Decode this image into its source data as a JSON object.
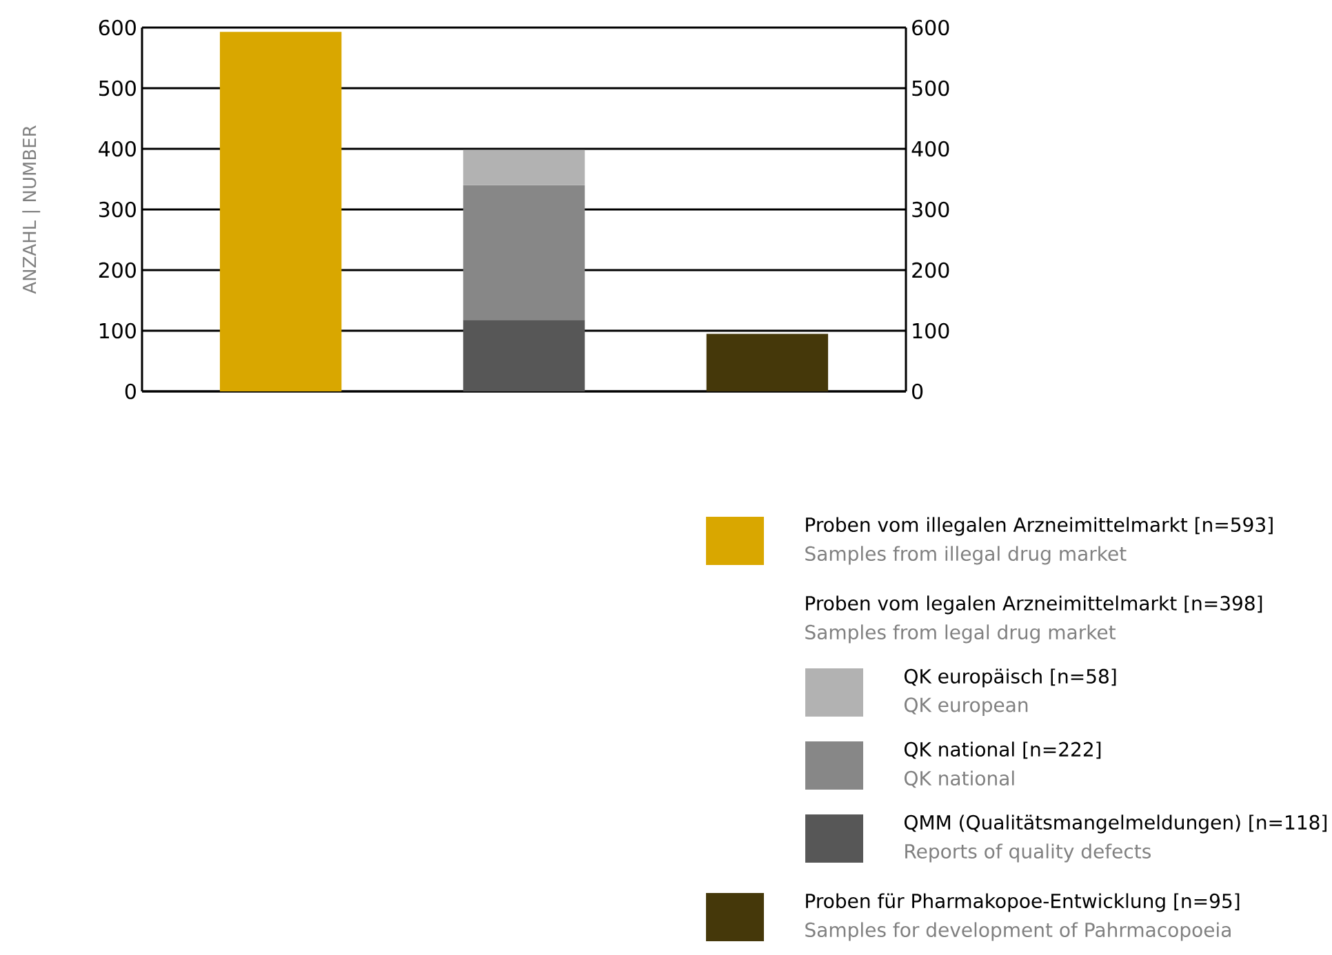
{
  "chart_data": {
    "type": "bar",
    "stacked": true,
    "ylabel": "ANZAHL | NUMBER",
    "categories": [
      null,
      null,
      null
    ],
    "series": [
      {
        "name": "Proben vom illegalen Arzneimittelmarkt [n=593]",
        "color": "#d9a700",
        "values": [
          593,
          null,
          null
        ]
      },
      {
        "name": "QMM (Qualitätsmangelmeldungen) [n=118]",
        "color": "#575757",
        "values": [
          null,
          118,
          null
        ]
      },
      {
        "name": "QK national [n=222]",
        "color": "#878787",
        "values": [
          null,
          222,
          null
        ]
      },
      {
        "name": "QK europäisch [n=58]",
        "color": "#b2b2b2",
        "values": [
          null,
          58,
          null
        ]
      },
      {
        "name": "Proben für Pharmakopoe-Entwicklung  [n=95]",
        "color": "#45380a",
        "values": [
          null,
          null,
          95
        ]
      }
    ],
    "ylim": [
      0,
      600
    ],
    "yticks": [
      0,
      100,
      200,
      300,
      400,
      500,
      600
    ],
    "y2lim": [
      0,
      600
    ],
    "y2ticks": [
      0,
      100,
      200,
      300,
      400,
      500,
      600
    ],
    "grid": "y",
    "legend": "bottom right",
    "annotations": [
      "Proben vom legalen Arzneimittelmarkt [n=398]",
      "Samples from legal drug market",
      "Samples from illegal drug market",
      "QK european",
      "QK national",
      "Reports of quality defects",
      "Samples for development of Pahrmacopoeia"
    ]
  }
}
